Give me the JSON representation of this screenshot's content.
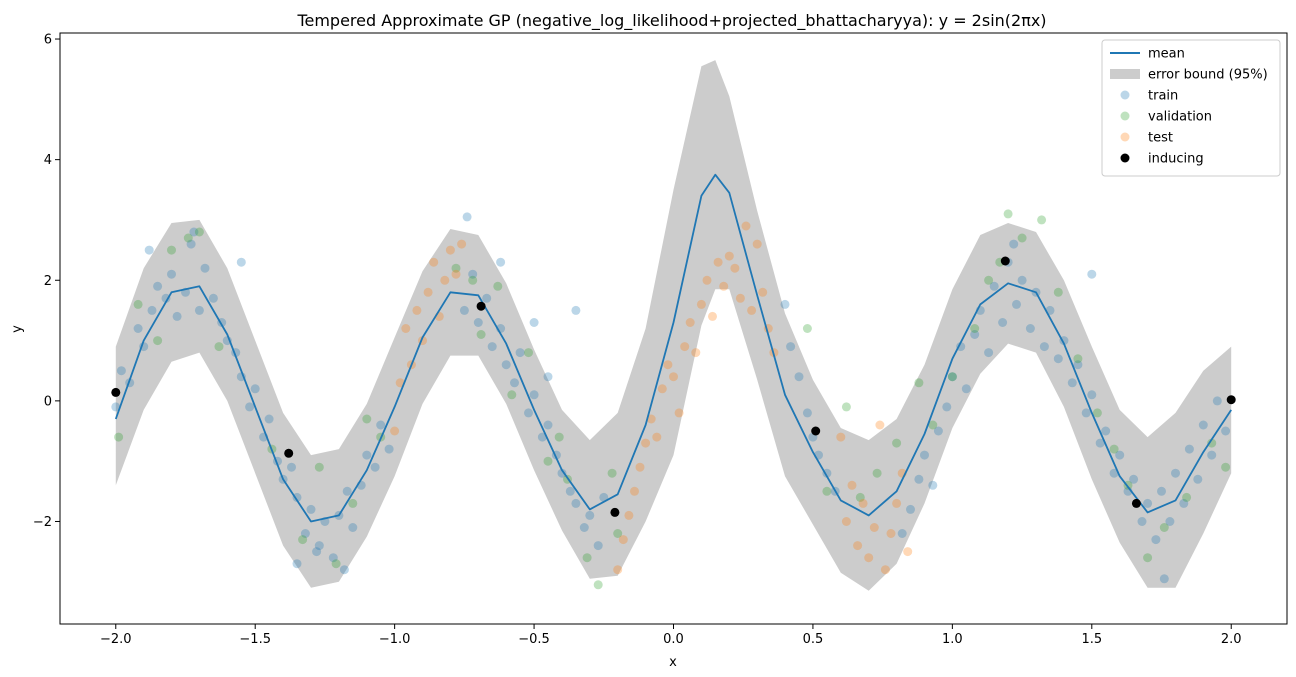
{
  "chart_data": {
    "type": "scatter",
    "title": "Tempered Approximate GP (negative_log_likelihood+projected_bhattacharyya): y = 2sin(2πx)",
    "xlabel": "x",
    "ylabel": "y",
    "xlim": [
      -2.2,
      2.2
    ],
    "ylim": [
      -3.7,
      6.1
    ],
    "xticks": [
      -2.0,
      -1.5,
      -1.0,
      -0.5,
      0.0,
      0.5,
      1.0,
      1.5,
      2.0
    ],
    "xtick_labels": [
      "−2.0",
      "−1.5",
      "−1.0",
      "−0.5",
      "0.0",
      "0.5",
      "1.0",
      "1.5",
      "2.0"
    ],
    "yticks": [
      -2,
      0,
      2,
      4,
      6
    ],
    "ytick_labels": [
      "−2",
      "0",
      "2",
      "4",
      "6"
    ],
    "grid": false,
    "legend_position": "top-right",
    "legend": [
      {
        "label": "mean",
        "kind": "line",
        "color": "#1f77b4"
      },
      {
        "label": "error bound (95%)",
        "kind": "band",
        "color": "#cccccc"
      },
      {
        "label": "train",
        "kind": "point",
        "color": "#1f77b4"
      },
      {
        "label": "validation",
        "kind": "point",
        "color": "#2ca02c"
      },
      {
        "label": "test",
        "kind": "point",
        "color": "#ff7f0e"
      },
      {
        "label": "inducing",
        "kind": "point",
        "color": "#000000"
      }
    ],
    "mean": {
      "x": [
        -2.0,
        -1.9,
        -1.8,
        -1.7,
        -1.6,
        -1.5,
        -1.4,
        -1.3,
        -1.2,
        -1.1,
        -1.0,
        -0.9,
        -0.8,
        -0.7,
        -0.6,
        -0.5,
        -0.4,
        -0.3,
        -0.2,
        -0.1,
        0.0,
        0.1,
        0.15,
        0.2,
        0.3,
        0.4,
        0.5,
        0.6,
        0.7,
        0.8,
        0.9,
        1.0,
        1.1,
        1.2,
        1.3,
        1.4,
        1.5,
        1.6,
        1.7,
        1.8,
        1.9,
        2.0
      ],
      "y": [
        -0.3,
        1.0,
        1.8,
        1.9,
        1.1,
        -0.1,
        -1.3,
        -2.0,
        -1.9,
        -1.15,
        -0.1,
        1.05,
        1.8,
        1.75,
        0.95,
        -0.15,
        -1.15,
        -1.8,
        -1.55,
        -0.4,
        1.3,
        3.4,
        3.75,
        3.45,
        1.75,
        0.1,
        -0.85,
        -1.65,
        -1.9,
        -1.5,
        -0.55,
        0.7,
        1.6,
        1.95,
        1.8,
        0.95,
        -0.2,
        -1.25,
        -1.85,
        -1.65,
        -0.85,
        -0.15
      ]
    },
    "error_bound_upper": [
      0.9,
      2.2,
      2.95,
      3.0,
      2.2,
      1.0,
      -0.2,
      -0.9,
      -0.8,
      -0.05,
      1.05,
      2.15,
      2.85,
      2.75,
      1.95,
      0.85,
      -0.15,
      -0.65,
      -0.2,
      1.2,
      3.5,
      5.55,
      5.65,
      5.05,
      3.15,
      1.45,
      0.35,
      -0.45,
      -0.65,
      -0.3,
      0.6,
      1.85,
      2.75,
      2.95,
      2.8,
      2.0,
      0.9,
      -0.15,
      -0.6,
      -0.2,
      0.5,
      0.9
    ],
    "error_bound_lower": [
      -1.4,
      -0.15,
      0.65,
      0.8,
      0.0,
      -1.2,
      -2.4,
      -3.1,
      -3.0,
      -2.25,
      -1.25,
      -0.05,
      0.75,
      0.75,
      -0.05,
      -1.15,
      -2.15,
      -2.95,
      -2.9,
      -2.0,
      -0.9,
      1.25,
      1.85,
      1.85,
      0.35,
      -1.25,
      -2.05,
      -2.85,
      -3.15,
      -2.7,
      -1.7,
      -0.45,
      0.45,
      0.95,
      0.8,
      -0.1,
      -1.3,
      -2.35,
      -3.1,
      -3.1,
      -2.2,
      -1.2
    ],
    "series": [
      {
        "name": "train",
        "x": [
          -2.0,
          -1.98,
          -1.95,
          -1.92,
          -1.9,
          -1.87,
          -1.85,
          -1.82,
          -1.8,
          -1.78,
          -1.75,
          -1.73,
          -1.7,
          -1.68,
          -1.65,
          -1.62,
          -1.6,
          -1.57,
          -1.55,
          -1.52,
          -1.5,
          -1.47,
          -1.45,
          -1.42,
          -1.4,
          -1.37,
          -1.35,
          -1.32,
          -1.3,
          -1.27,
          -1.25,
          -1.22,
          -1.2,
          -1.17,
          -1.15,
          -1.12,
          -1.1,
          -1.07,
          -1.05,
          -1.02,
          -0.75,
          -0.72,
          -0.7,
          -0.67,
          -0.65,
          -0.62,
          -0.6,
          -0.57,
          -0.55,
          -0.52,
          -0.5,
          -0.47,
          -0.45,
          -0.42,
          -0.4,
          -0.37,
          -0.35,
          -0.32,
          -0.3,
          -0.27,
          -0.25,
          -0.5,
          -0.45,
          0.4,
          0.42,
          0.45,
          0.48,
          0.5,
          0.52,
          0.55,
          0.58,
          0.82,
          0.85,
          0.88,
          0.9,
          0.93,
          0.95,
          0.98,
          1.0,
          1.03,
          1.05,
          1.08,
          1.1,
          1.13,
          1.15,
          1.18,
          1.2,
          1.23,
          1.25,
          1.28,
          1.3,
          1.33,
          1.35,
          1.38,
          1.4,
          1.43,
          1.45,
          1.48,
          1.5,
          1.53,
          1.55,
          1.58,
          1.6,
          1.63,
          1.65,
          1.68,
          1.7,
          1.73,
          1.75,
          1.78,
          1.8,
          1.83,
          1.85,
          1.88,
          1.9,
          1.93,
          1.95,
          1.98,
          -1.88,
          -1.72,
          -1.55,
          -1.35,
          -1.28,
          -1.18,
          -0.74,
          -0.62,
          -0.35,
          1.22,
          1.5,
          1.76
        ],
        "y": [
          -0.1,
          0.5,
          0.3,
          1.2,
          0.9,
          1.5,
          1.9,
          1.7,
          2.1,
          1.4,
          1.8,
          2.6,
          1.5,
          2.2,
          1.7,
          1.3,
          1.0,
          0.8,
          0.4,
          -0.1,
          0.2,
          -0.6,
          -0.3,
          -1.0,
          -1.3,
          -1.1,
          -1.6,
          -2.2,
          -1.8,
          -2.4,
          -2.0,
          -2.6,
          -1.9,
          -1.5,
          -2.1,
          -1.4,
          -0.9,
          -1.1,
          -0.4,
          -0.8,
          1.5,
          2.1,
          1.3,
          1.7,
          0.9,
          1.2,
          0.6,
          0.3,
          0.8,
          -0.2,
          0.1,
          -0.6,
          -0.4,
          -0.9,
          -1.2,
          -1.5,
          -1.7,
          -2.1,
          -1.9,
          -2.4,
          -1.6,
          1.3,
          0.4,
          1.6,
          0.9,
          0.4,
          -0.2,
          -0.6,
          -0.9,
          -1.2,
          -1.5,
          -2.2,
          -1.8,
          -1.3,
          -0.9,
          -1.4,
          -0.5,
          -0.1,
          0.4,
          0.9,
          0.2,
          1.1,
          1.5,
          0.8,
          1.9,
          1.3,
          2.3,
          1.6,
          2.0,
          1.2,
          1.8,
          0.9,
          1.5,
          0.7,
          1.0,
          0.3,
          0.6,
          -0.2,
          0.1,
          -0.7,
          -0.5,
          -1.2,
          -0.9,
          -1.5,
          -1.3,
          -2.0,
          -1.7,
          -2.3,
          -1.5,
          -2.0,
          -1.2,
          -1.7,
          -0.8,
          -1.3,
          -0.4,
          -0.9,
          0.0,
          -0.5,
          2.5,
          2.8,
          2.3,
          -2.7,
          -2.5,
          -2.8,
          3.05,
          2.3,
          1.5,
          2.6,
          2.1,
          -2.95
        ]
      },
      {
        "name": "validation",
        "x": [
          -1.99,
          -1.92,
          -1.85,
          -1.8,
          -1.74,
          -1.7,
          -1.63,
          -1.44,
          -1.33,
          -1.27,
          -1.21,
          -1.15,
          -1.1,
          -1.05,
          -0.78,
          -0.72,
          -0.69,
          -0.63,
          -0.58,
          -0.52,
          -0.45,
          -0.41,
          -0.38,
          -0.31,
          -0.27,
          -0.22,
          -0.2,
          0.48,
          0.55,
          0.62,
          0.67,
          0.73,
          0.8,
          0.88,
          0.93,
          1.0,
          1.08,
          1.13,
          1.17,
          1.2,
          1.25,
          1.32,
          1.38,
          1.45,
          1.52,
          1.58,
          1.63,
          1.7,
          1.76,
          1.84,
          1.93,
          1.98
        ],
        "y": [
          -0.6,
          1.6,
          1.0,
          2.5,
          2.7,
          2.8,
          0.9,
          -0.8,
          -2.3,
          -1.1,
          -2.7,
          -1.7,
          -0.3,
          -0.6,
          2.2,
          2.0,
          1.1,
          1.9,
          0.1,
          0.8,
          -1.0,
          -0.6,
          -1.3,
          -2.6,
          -3.05,
          -1.2,
          -2.2,
          1.2,
          -1.5,
          -0.1,
          -1.6,
          -1.2,
          -0.7,
          0.3,
          -0.4,
          0.4,
          1.2,
          2.0,
          2.3,
          3.1,
          2.7,
          3.0,
          1.8,
          0.7,
          -0.2,
          -0.8,
          -1.4,
          -2.6,
          -2.1,
          -1.6,
          -0.7,
          -1.1
        ]
      },
      {
        "name": "test",
        "x": [
          -1.0,
          -0.98,
          -0.96,
          -0.94,
          -0.92,
          -0.9,
          -0.88,
          -0.86,
          -0.84,
          -0.82,
          -0.8,
          -0.78,
          -0.76,
          -0.2,
          -0.18,
          -0.16,
          -0.14,
          -0.12,
          -0.1,
          -0.08,
          -0.06,
          -0.04,
          -0.02,
          0.0,
          0.02,
          0.04,
          0.06,
          0.08,
          0.1,
          0.12,
          0.14,
          0.16,
          0.18,
          0.2,
          0.22,
          0.24,
          0.26,
          0.28,
          0.3,
          0.32,
          0.34,
          0.36,
          0.6,
          0.62,
          0.64,
          0.66,
          0.68,
          0.7,
          0.72,
          0.74,
          0.76,
          0.78,
          0.8,
          0.82,
          0.84
        ],
        "y": [
          -0.5,
          0.3,
          1.2,
          0.6,
          1.5,
          1.0,
          1.8,
          2.3,
          1.4,
          2.0,
          2.5,
          2.1,
          2.6,
          -2.8,
          -2.3,
          -1.9,
          -1.5,
          -1.1,
          -0.7,
          -0.3,
          -0.6,
          0.2,
          0.6,
          0.4,
          -0.2,
          0.9,
          1.3,
          0.8,
          1.6,
          2.0,
          1.4,
          2.3,
          1.9,
          2.4,
          2.2,
          1.7,
          2.9,
          1.5,
          2.6,
          1.8,
          1.2,
          0.8,
          -0.6,
          -2.0,
          -1.4,
          -2.4,
          -1.7,
          -2.6,
          -2.1,
          -0.4,
          -2.8,
          -2.2,
          -1.7,
          -1.2,
          -2.5
        ]
      },
      {
        "name": "inducing",
        "x": [
          -2.0,
          -1.38,
          -0.69,
          -0.21,
          0.51,
          1.19,
          1.66,
          2.0
        ],
        "y": [
          0.14,
          -0.87,
          1.57,
          -1.85,
          -0.5,
          2.32,
          -1.7,
          0.02
        ]
      }
    ]
  }
}
